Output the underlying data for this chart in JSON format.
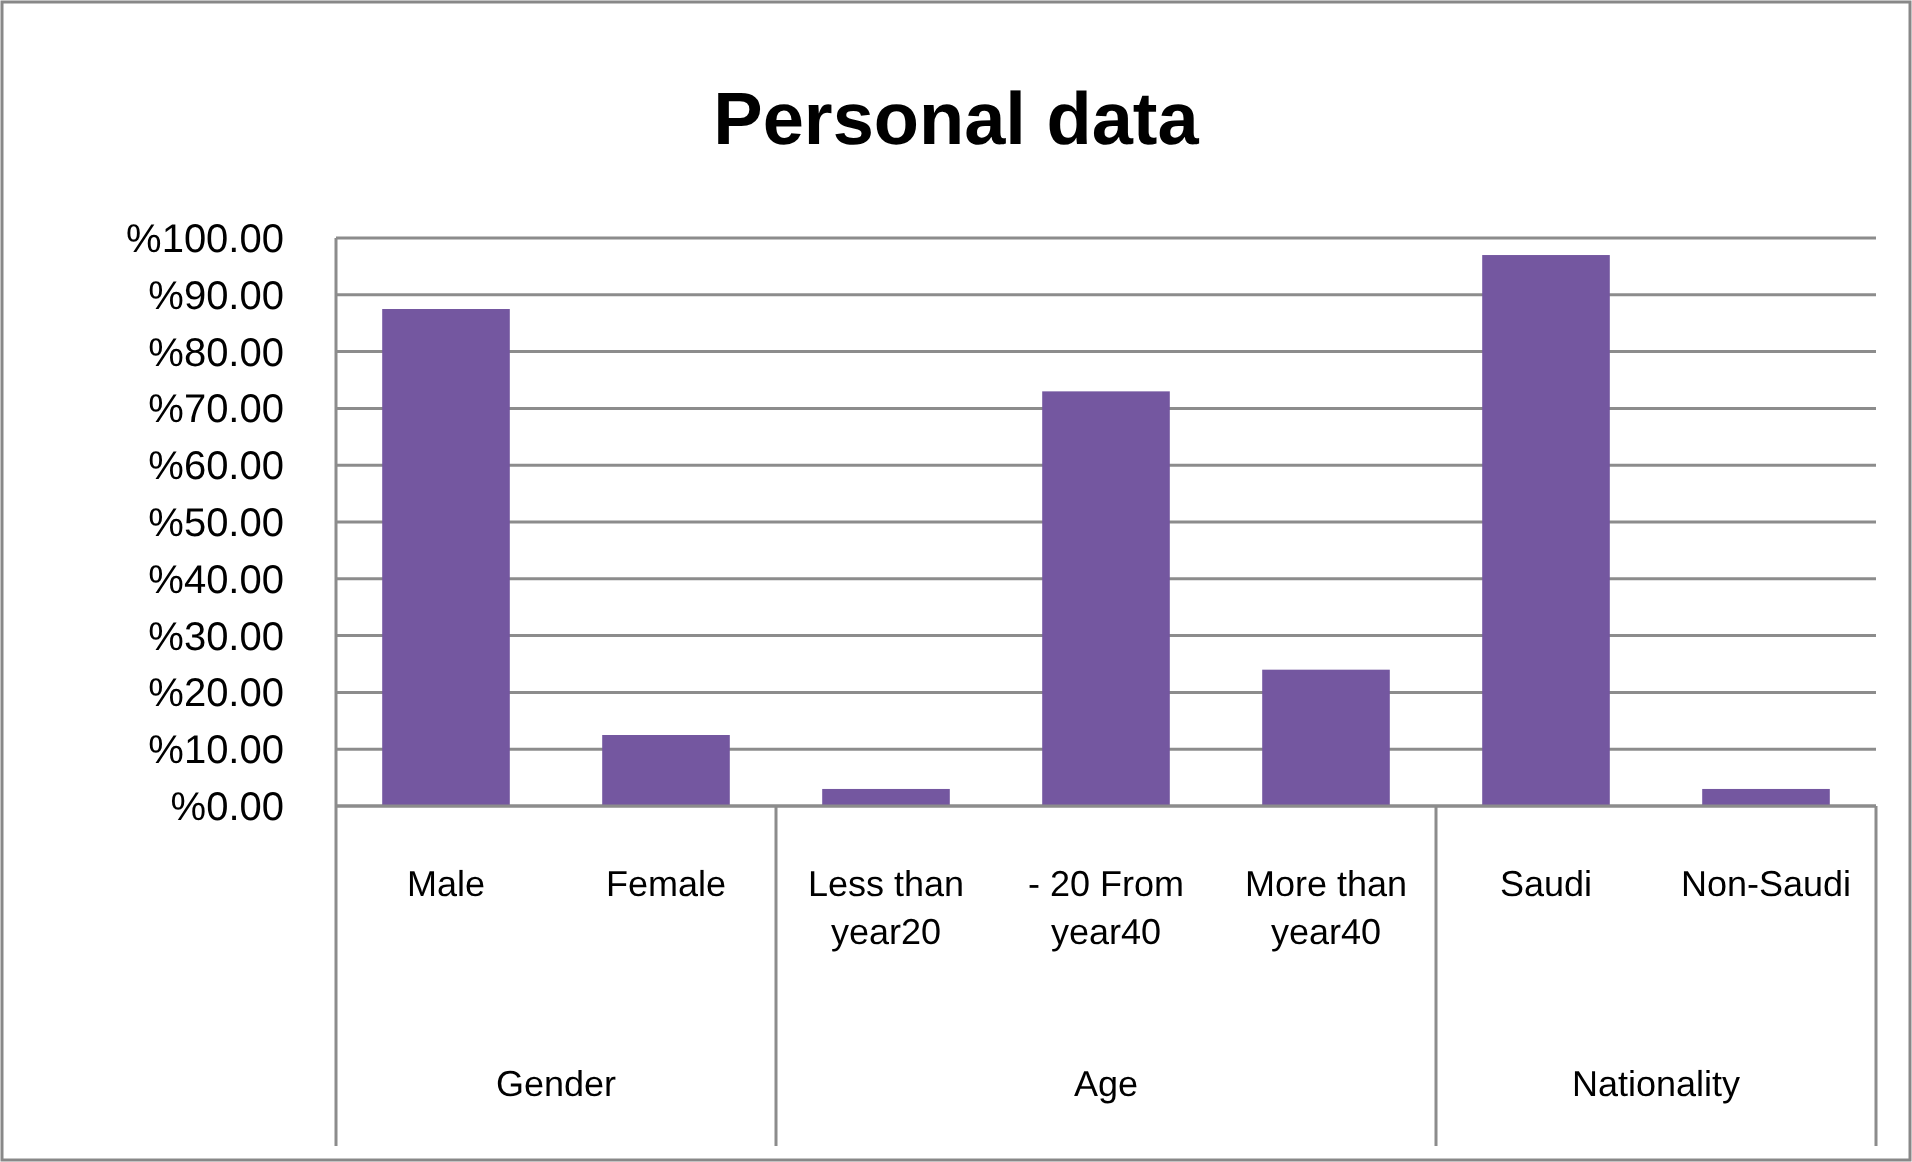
{
  "chart_data": {
    "type": "bar",
    "title": "Personal data",
    "categories": [
      "Male",
      "Female",
      "Less than year20",
      "- 20 From year40",
      "More than year40",
      "Saudi",
      "Non-Saudi"
    ],
    "values": [
      87.5,
      12.5,
      3,
      73,
      24,
      97,
      3
    ],
    "color": "#7457a0",
    "ylim": [
      0,
      100
    ],
    "yticks": [
      {
        "value": 0,
        "label": "%0.00"
      },
      {
        "value": 10,
        "label": "%10.00"
      },
      {
        "value": 20,
        "label": "%20.00"
      },
      {
        "value": 30,
        "label": "%30.00"
      },
      {
        "value": 40,
        "label": "%40.00"
      },
      {
        "value": 50,
        "label": "%50.00"
      },
      {
        "value": 60,
        "label": "%60.00"
      },
      {
        "value": 70,
        "label": "%70.00"
      },
      {
        "value": 80,
        "label": "%80.00"
      },
      {
        "value": 90,
        "label": "%90.00"
      },
      {
        "value": 100,
        "label": "%100.00"
      }
    ],
    "grid": "y",
    "annotations": [
      "Gender",
      "Age",
      "Nationality"
    ]
  }
}
